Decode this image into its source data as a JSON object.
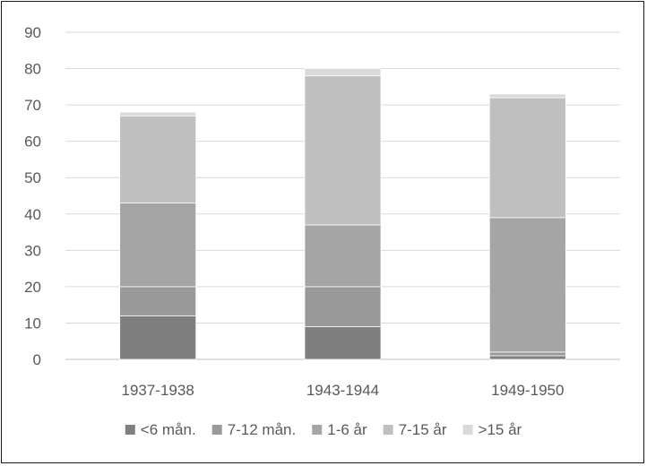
{
  "chart_data": {
    "type": "bar",
    "stacked": true,
    "categories": [
      "1937-1938",
      "1943-1944",
      "1949-1950"
    ],
    "series": [
      {
        "name": "<6 mån.",
        "color": "#7f7f7f",
        "values": [
          12,
          9,
          1
        ]
      },
      {
        "name": "7-12 mån.",
        "color": "#999999",
        "values": [
          8,
          11,
          1
        ]
      },
      {
        "name": "1-6 år",
        "color": "#a5a5a5",
        "values": [
          23,
          17,
          37
        ]
      },
      {
        "name": "7-15 år",
        "color": "#bfbfbf",
        "values": [
          24,
          41,
          33
        ]
      },
      {
        "name": ">15 år",
        "color": "#d9d9d9",
        "values": [
          1,
          2,
          1
        ]
      }
    ],
    "title": "",
    "xlabel": "",
    "ylabel": "",
    "ylim": [
      0,
      90
    ],
    "yticks": [
      "0",
      "10",
      "20",
      "30",
      "40",
      "50",
      "60",
      "70",
      "80",
      "90"
    ],
    "grid": true,
    "legend_position": "bottom"
  }
}
